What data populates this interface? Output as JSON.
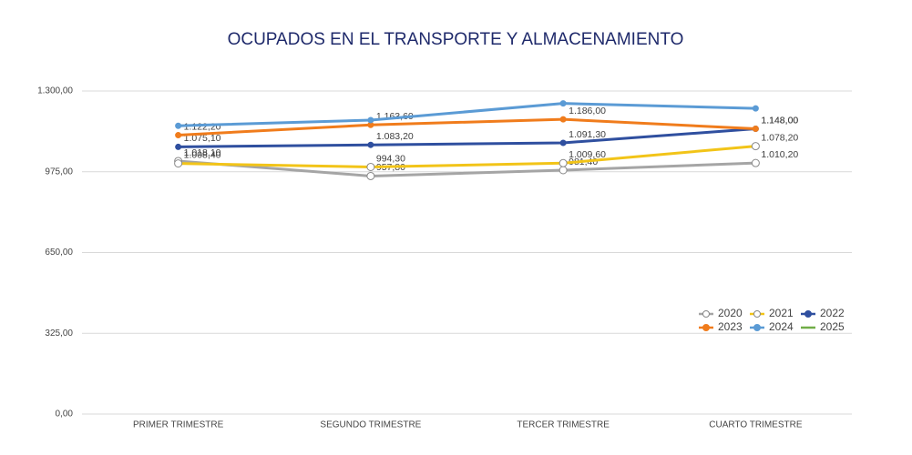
{
  "chart_data": {
    "type": "line",
    "title": "OCUPADOS EN EL TRANSPORTE Y ALMACENAMIENTO",
    "categories": [
      "PRIMER TRIMESTRE",
      "SEGUNDO TRIMESTRE",
      "TERCER TRIMESTRE",
      "CUARTO TRIMESTRE"
    ],
    "series": [
      {
        "name": "2020",
        "color": "#a5a5a5",
        "marker": "hollow",
        "values": [
          1018.1,
          957.8,
          981.4,
          1010.2
        ],
        "value_labels": [
          "1.018,10",
          "957,80",
          "981,40",
          "1.010,20"
        ]
      },
      {
        "name": "2021",
        "color": "#f2c418",
        "marker": "hollow",
        "values": [
          1008.4,
          994.3,
          1009.6,
          1078.2
        ],
        "value_labels": [
          "1.008,40",
          "994,30",
          "1.009,60",
          "1.078,20"
        ]
      },
      {
        "name": "2022",
        "color": "#2f4f9f",
        "marker": "filled",
        "values": [
          1075.1,
          1083.2,
          1091.3,
          1148.0
        ],
        "value_labels": [
          "1.075,10",
          "1.083,20",
          "1.091,30",
          "1.148,00"
        ]
      },
      {
        "name": "2023",
        "color": "#f07c1c",
        "marker": "filled",
        "values": [
          1122.2,
          1163.6,
          1186.0,
          1148.0
        ],
        "value_labels": [
          "1.122,20",
          "1.163,60",
          "1.186,00",
          "1.148,00"
        ]
      },
      {
        "name": "2024",
        "color": "#5b9bd5",
        "marker": "filled",
        "values": [
          1160,
          1183,
          1250,
          1230
        ]
      },
      {
        "name": "2025",
        "color": "#70ad47",
        "marker": "none",
        "values": [
          null,
          null,
          null,
          null
        ]
      }
    ],
    "ylim": [
      0,
      1300
    ],
    "yticks": [
      {
        "value": 0,
        "label": "0,00"
      },
      {
        "value": 325,
        "label": "325,00"
      },
      {
        "value": 650,
        "label": "650,00"
      },
      {
        "value": 975,
        "label": "975,00"
      },
      {
        "value": 1300,
        "label": "1.300,00"
      }
    ],
    "grid": true,
    "legend": "right"
  }
}
